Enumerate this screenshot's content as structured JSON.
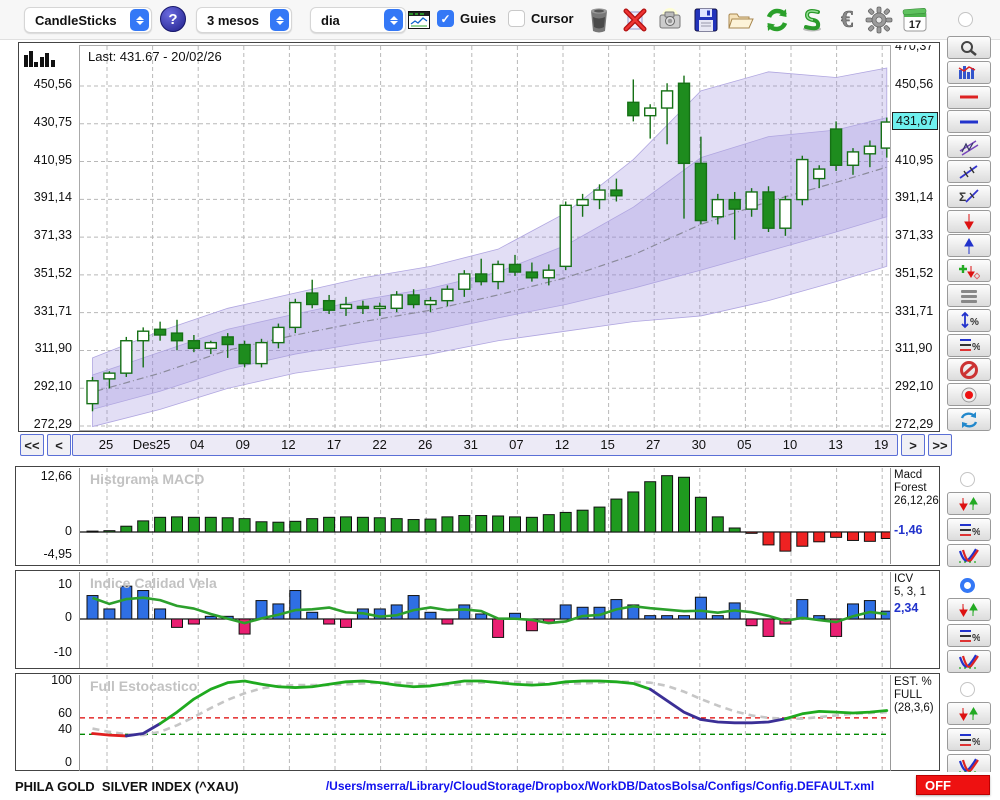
{
  "toolbar": {
    "chart_type": "CandleSticks",
    "help_label": "?",
    "period": "3 mesos",
    "timeframe": "dia",
    "guies_label": "Guies",
    "cursor_label": "Cursor",
    "calendar_day": "17",
    "icons": [
      "chart-window",
      "trash",
      "delete-x",
      "camera",
      "save",
      "open-folder",
      "refresh",
      "sync",
      "euro",
      "settings",
      "calendar"
    ]
  },
  "main_chart": {
    "last_label": "Last: 431.67 - 20/02/26",
    "left_axis_labels": [
      "450,56",
      "430,75",
      "410,95",
      "391,14",
      "371,33",
      "351,52",
      "331,71",
      "311,90",
      "292,10",
      "272,29"
    ],
    "left_axis_prices": [
      450.56,
      430.75,
      410.95,
      391.14,
      371.33,
      351.52,
      331.71,
      311.9,
      292.1,
      272.29
    ],
    "right_axis_labels": [
      "470,37",
      "450,56",
      "410,95",
      "391,14",
      "371,33",
      "351,52",
      "331,71",
      "311,90",
      "292,10",
      "272,29"
    ],
    "right_axis_prices": [
      470.37,
      450.56,
      410.95,
      391.14,
      371.33,
      351.52,
      331.71,
      311.9,
      292.1,
      272.29
    ],
    "price_tag": "431,67",
    "price_tag_value": 431.67,
    "colors": {
      "candle_up_fill": "#ffffff",
      "candle_down_fill": "#1e8c1e",
      "candle_stroke": "#157015",
      "envelope": "rgba(150,135,220,0.28)",
      "mid_line": "#8a8a9a",
      "grid": "#b8b8b8",
      "tag_bg": "#6ff0ee"
    }
  },
  "nav": {
    "prev_fast": "<<",
    "prev": "<",
    "next": ">",
    "next_fast": ">>",
    "labels": [
      "25",
      "Des25",
      "04",
      "09",
      "12",
      "17",
      "22",
      "26",
      "31",
      "07",
      "12",
      "15",
      "27",
      "30",
      "05",
      "10",
      "13",
      "19"
    ]
  },
  "panels": {
    "macd": {
      "title": "Histgrama MACD",
      "ymax": "12,66",
      "yzero": "0",
      "ymin": "-4,95",
      "param_lines": [
        "Macd",
        "Forest",
        "26,12,26"
      ],
      "value": "-1,46"
    },
    "icv": {
      "title": "Indice Calidad Vela",
      "ymax": "10",
      "yzero": "0",
      "ymin": "-10",
      "param_lines": [
        "ICV",
        "5, 3, 1"
      ],
      "value": "2,34"
    },
    "stoch": {
      "title": "Full Estocastico",
      "ylabels": [
        "100",
        "60",
        "40",
        "0"
      ],
      "yvalues": [
        100,
        60,
        40,
        0
      ],
      "param_lines": [
        "EST. %",
        "FULL",
        "(28,3,6)"
      ]
    }
  },
  "status": {
    "symbol": "PHILA GOLD  SILVER INDEX (^XAU)",
    "config_path": "/Users/mserra/Library/CloudStorage/Dropbox/WorkDB/DatosBolsa/Configs/Config.DEFAULT.xml",
    "off_label": "OFF"
  },
  "chart_data": [
    {
      "type": "candlestick",
      "title": "PHILA GOLD SILVER INDEX (^XAU) daily candles, 3 months",
      "last_close": 431.67,
      "last_date": "20/02/26",
      "ylim": [
        272.29,
        470.37
      ],
      "y_gridline_prices": [
        450.56,
        430.75,
        410.95,
        391.14,
        371.33,
        351.52,
        331.71,
        311.9,
        292.1,
        272.29
      ],
      "x_labels": [
        "25",
        "Des25",
        "04",
        "09",
        "12",
        "17",
        "22",
        "26",
        "31",
        "07",
        "12",
        "15",
        "27",
        "30",
        "05",
        "10",
        "13",
        "19"
      ],
      "ohlc": [
        [
          284,
          298,
          280,
          296
        ],
        [
          297,
          301,
          292,
          300
        ],
        [
          300,
          319,
          298,
          317
        ],
        [
          317,
          324,
          303,
          322
        ],
        [
          323,
          327,
          317,
          320
        ],
        [
          321,
          328,
          312,
          317
        ],
        [
          317,
          320,
          311,
          313
        ],
        [
          313,
          317,
          310,
          316
        ],
        [
          319,
          321,
          308,
          315
        ],
        [
          315,
          317,
          303,
          305
        ],
        [
          305,
          318,
          303,
          316
        ],
        [
          316,
          326,
          313,
          324
        ],
        [
          324,
          339,
          321,
          337
        ],
        [
          342,
          349,
          334,
          336
        ],
        [
          338,
          341,
          331,
          333
        ],
        [
          334,
          340,
          330,
          336
        ],
        [
          335,
          338,
          331,
          334
        ],
        [
          334,
          337,
          330,
          335
        ],
        [
          334,
          343,
          332,
          341
        ],
        [
          341,
          344,
          334,
          336
        ],
        [
          336,
          340,
          332,
          338
        ],
        [
          338,
          346,
          335,
          344
        ],
        [
          344,
          354,
          340,
          352
        ],
        [
          352,
          360,
          346,
          348
        ],
        [
          348,
          359,
          344,
          357
        ],
        [
          357,
          362,
          351,
          353
        ],
        [
          353,
          358,
          348,
          350
        ],
        [
          350,
          357,
          346,
          354
        ],
        [
          356,
          390,
          354,
          388
        ],
        [
          388,
          394,
          382,
          391
        ],
        [
          391,
          399,
          386,
          396
        ],
        [
          396,
          402,
          390,
          393
        ],
        [
          442,
          454,
          432,
          435
        ],
        [
          435,
          441,
          423,
          439
        ],
        [
          439,
          452,
          420,
          448
        ],
        [
          452,
          456,
          381,
          410
        ],
        [
          410,
          424,
          378,
          380
        ],
        [
          382,
          394,
          378,
          391
        ],
        [
          391,
          395,
          370,
          386
        ],
        [
          386,
          397,
          382,
          395
        ],
        [
          395,
          398,
          374,
          376
        ],
        [
          376,
          393,
          372,
          391
        ],
        [
          391,
          414,
          388,
          412
        ],
        [
          402,
          409,
          397,
          407
        ],
        [
          428,
          432,
          406,
          409
        ],
        [
          409,
          418,
          404,
          416
        ],
        [
          415,
          422,
          408,
          419
        ],
        [
          418,
          434,
          413,
          431.67
        ]
      ],
      "envelope": {
        "sample_idx": [
          0,
          4,
          8,
          12,
          16,
          20,
          24,
          28,
          32,
          36,
          40,
          44,
          47
        ],
        "mid": [
          290,
          300,
          312,
          320,
          327,
          333,
          341,
          350,
          362,
          378,
          390,
          400,
          408
        ],
        "upper": [
          308,
          322,
          334,
          342,
          350,
          356,
          365,
          384,
          412,
          448,
          458,
          455,
          460
        ],
        "lower": [
          272,
          281,
          292,
          300,
          305,
          310,
          317,
          322,
          327,
          330,
          338,
          348,
          356
        ],
        "inner_factor": 0.5
      }
    },
    {
      "type": "bar",
      "title": "Histgrama MACD",
      "params": "26,12,26",
      "last_value": -1.46,
      "ylim": [
        -4.95,
        12.66
      ],
      "values": [
        0.2,
        0.3,
        1.3,
        2.5,
        3.3,
        3.4,
        3.3,
        3.3,
        3.2,
        3.0,
        2.3,
        2.2,
        2.4,
        3.0,
        3.3,
        3.4,
        3.3,
        3.2,
        3.0,
        2.8,
        2.9,
        3.4,
        3.7,
        3.7,
        3.6,
        3.4,
        3.3,
        3.9,
        4.4,
        4.9,
        5.6,
        7.4,
        9.0,
        11.3,
        12.66,
        12.3,
        7.8,
        3.4,
        0.9,
        -0.3,
        -2.9,
        -4.3,
        -3.2,
        -2.2,
        -1.2,
        -1.9,
        -2.1,
        -1.46
      ],
      "positive_color": "#1f9a1f",
      "negative_color": "#ee2222"
    },
    {
      "type": "bar",
      "title": "Indice Calidad Vela",
      "params": "5, 3, 1",
      "last_value": 2.34,
      "ylim": [
        -10,
        10
      ],
      "values": [
        7,
        3,
        9.8,
        8.5,
        3,
        -2.5,
        -1.5,
        0.8,
        0.8,
        -4.5,
        5.5,
        4.5,
        8.5,
        2,
        -1.5,
        -2.5,
        3,
        3,
        4.2,
        7,
        2,
        -1.5,
        4.2,
        1.5,
        -5.5,
        1.7,
        -3.5,
        -1,
        4.2,
        3.5,
        3.5,
        5.8,
        4.2,
        1,
        1,
        1,
        6.5,
        1,
        4.8,
        -2,
        -5.2,
        -1.5,
        5.8,
        1,
        -5.2,
        4.5,
        5.5,
        2.34
      ],
      "ma_window": 5,
      "positive_color": "#2f6fe4",
      "negative_color": "#ea1f72",
      "ma_color": "#2ca02c"
    },
    {
      "type": "line",
      "title": "Full Estocastico",
      "params": "(28,3,6)",
      "ylim": [
        0,
        100
      ],
      "k_values": [
        36,
        34,
        33,
        36,
        48,
        62,
        78,
        90,
        98,
        100,
        96,
        93,
        92,
        93,
        96,
        99,
        100,
        98,
        95,
        93,
        94,
        97,
        100,
        100,
        98,
        96,
        95,
        96,
        99,
        100,
        100,
        99,
        97,
        90,
        76,
        62,
        53,
        50,
        49,
        49,
        50,
        54,
        60,
        63,
        62,
        61,
        62,
        64
      ],
      "d_values": [
        42,
        38,
        35,
        34,
        38,
        46,
        56,
        67,
        77,
        85,
        91,
        94,
        95,
        95,
        95,
        96,
        97,
        98,
        98,
        97,
        95,
        95,
        96,
        98,
        99,
        99,
        98,
        97,
        97,
        97,
        98,
        99,
        99,
        98,
        94,
        87,
        78,
        70,
        63,
        58,
        55,
        54,
        54,
        56,
        58,
        60,
        61,
        62
      ],
      "k_segments": [
        {
          "from": 0,
          "to": 2,
          "color": "#e02020"
        },
        {
          "from": 2,
          "to": 4,
          "color": "#3b2f96"
        },
        {
          "from": 4,
          "to": 33,
          "color": "#1faa1f"
        },
        {
          "from": 33,
          "to": 41,
          "color": "#3b2f96"
        },
        {
          "from": 41,
          "to": 47,
          "color": "#1faa1f"
        }
      ],
      "d_color": "#c6c6c6",
      "hlines": [
        {
          "value": 55,
          "color": "#dd0000"
        },
        {
          "value": 35,
          "color": "#008800"
        }
      ]
    }
  ]
}
